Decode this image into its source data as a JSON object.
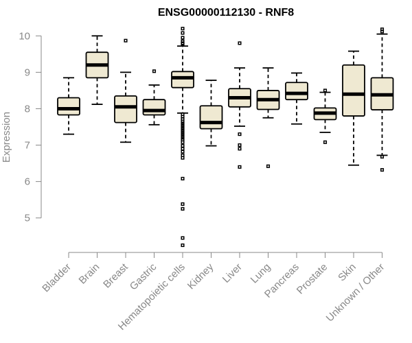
{
  "chart_data": {
    "type": "boxplot",
    "title": "ENSG00000112130 - RNF8",
    "ylabel": "Expression",
    "ylim": [
      4.15,
      10.3
    ],
    "yticks": [
      5,
      6,
      7,
      8,
      9,
      10
    ],
    "categories": [
      "Bladder",
      "Brain",
      "Breast",
      "Gastric",
      "Hematopoietic cells",
      "Kidney",
      "Liver",
      "Lung",
      "Pancreas",
      "Prostate",
      "Skin",
      "Unknown / Other"
    ],
    "boxes": [
      {
        "whisker_low": 7.3,
        "q1": 7.83,
        "median": 8.0,
        "q3": 8.3,
        "whisker_high": 8.85,
        "outliers": []
      },
      {
        "whisker_low": 8.12,
        "q1": 8.85,
        "median": 9.2,
        "q3": 9.55,
        "whisker_high": 10.0,
        "outliers": []
      },
      {
        "whisker_low": 7.08,
        "q1": 7.62,
        "median": 8.05,
        "q3": 8.35,
        "whisker_high": 9.0,
        "outliers": [
          9.87
        ]
      },
      {
        "whisker_low": 7.56,
        "q1": 7.83,
        "median": 7.95,
        "q3": 8.25,
        "whisker_high": 8.65,
        "outliers": [
          9.03
        ]
      },
      {
        "whisker_low": 7.88,
        "q1": 8.58,
        "median": 8.85,
        "q3": 9.02,
        "whisker_high": 9.72,
        "outliers": [
          10.2,
          10.08,
          9.95,
          9.85,
          9.8,
          9.78,
          7.85,
          7.78,
          7.72,
          7.65,
          7.6,
          7.55,
          7.5,
          7.45,
          7.4,
          7.35,
          7.3,
          7.25,
          7.2,
          7.15,
          7.08,
          6.98,
          6.9,
          6.82,
          6.72,
          6.65,
          6.08,
          5.38,
          5.25,
          4.45,
          4.25
        ]
      },
      {
        "whisker_low": 6.98,
        "q1": 7.45,
        "median": 7.62,
        "q3": 8.08,
        "whisker_high": 8.78,
        "outliers": []
      },
      {
        "whisker_low": 7.52,
        "q1": 8.05,
        "median": 8.3,
        "q3": 8.55,
        "whisker_high": 9.12,
        "outliers": [
          9.8,
          7.3,
          7.0,
          6.9,
          6.4
        ]
      },
      {
        "whisker_low": 7.75,
        "q1": 7.98,
        "median": 8.25,
        "q3": 8.5,
        "whisker_high": 9.12,
        "outliers": [
          6.42
        ]
      },
      {
        "whisker_low": 7.58,
        "q1": 8.25,
        "median": 8.42,
        "q3": 8.72,
        "whisker_high": 8.98,
        "outliers": []
      },
      {
        "whisker_low": 7.35,
        "q1": 7.7,
        "median": 7.88,
        "q3": 8.02,
        "whisker_high": 8.45,
        "outliers": [
          8.5,
          7.08
        ]
      },
      {
        "whisker_low": 6.45,
        "q1": 7.8,
        "median": 8.4,
        "q3": 9.2,
        "whisker_high": 9.58,
        "outliers": []
      },
      {
        "whisker_low": 6.72,
        "q1": 7.97,
        "median": 8.38,
        "q3": 8.85,
        "whisker_high": 10.05,
        "outliers": [
          10.18,
          10.12,
          6.68,
          6.32
        ]
      }
    ],
    "colors": {
      "box_fill": "#efe9d2",
      "box_stroke": "#000000",
      "axis": "#888888"
    },
    "grid": false,
    "legend": "none"
  }
}
